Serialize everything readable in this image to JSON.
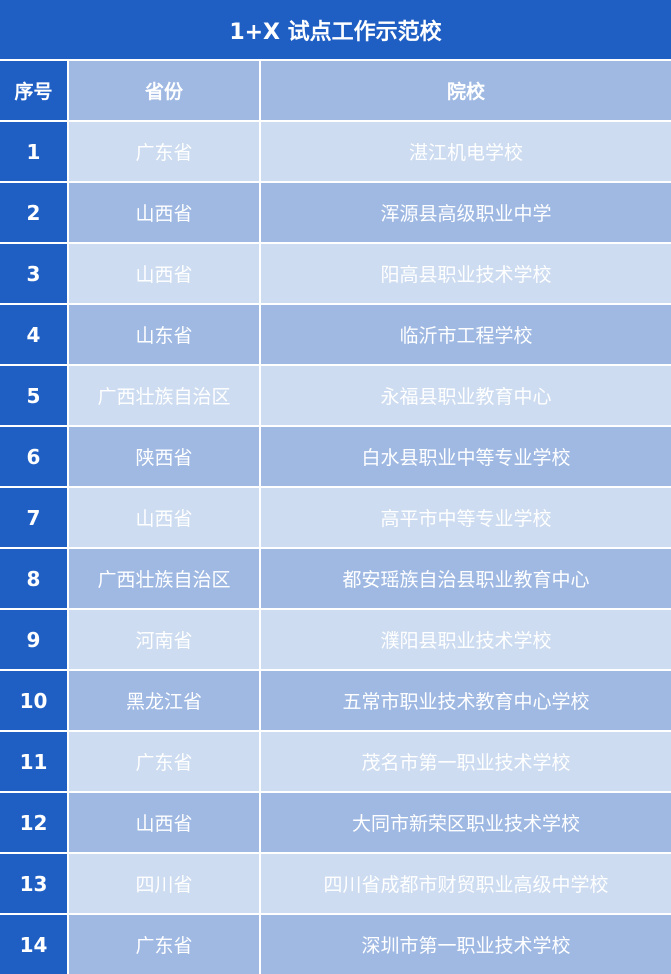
{
  "title": "1+X 试点工作示范校",
  "headers": {
    "index": "序号",
    "province": "省份",
    "school": "院校"
  },
  "colors": {
    "primary": "#1f5fc4",
    "row_light": "#cddcf0",
    "row_dark": "#9fb9e3",
    "text": "#ffffff"
  },
  "rows": [
    {
      "index": "1",
      "province": "广东省",
      "school": "湛江机电学校"
    },
    {
      "index": "2",
      "province": "山西省",
      "school": "浑源县高级职业中学"
    },
    {
      "index": "3",
      "province": "山西省",
      "school": "阳高县职业技术学校"
    },
    {
      "index": "4",
      "province": "山东省",
      "school": "临沂市工程学校"
    },
    {
      "index": "5",
      "province": "广西壮族自治区",
      "school": "永福县职业教育中心"
    },
    {
      "index": "6",
      "province": "陕西省",
      "school": "白水县职业中等专业学校"
    },
    {
      "index": "7",
      "province": "山西省",
      "school": "高平市中等专业学校"
    },
    {
      "index": "8",
      "province": "广西壮族自治区",
      "school": "都安瑶族自治县职业教育中心"
    },
    {
      "index": "9",
      "province": "河南省",
      "school": "濮阳县职业技术学校"
    },
    {
      "index": "10",
      "province": "黑龙江省",
      "school": "五常市职业技术教育中心学校"
    },
    {
      "index": "11",
      "province": "广东省",
      "school": "茂名市第一职业技术学校"
    },
    {
      "index": "12",
      "province": "山西省",
      "school": "大同市新荣区职业技术学校"
    },
    {
      "index": "13",
      "province": "四川省",
      "school": "四川省成都市财贸职业高级中学校"
    },
    {
      "index": "14",
      "province": "广东省",
      "school": "深圳市第一职业技术学校"
    }
  ]
}
